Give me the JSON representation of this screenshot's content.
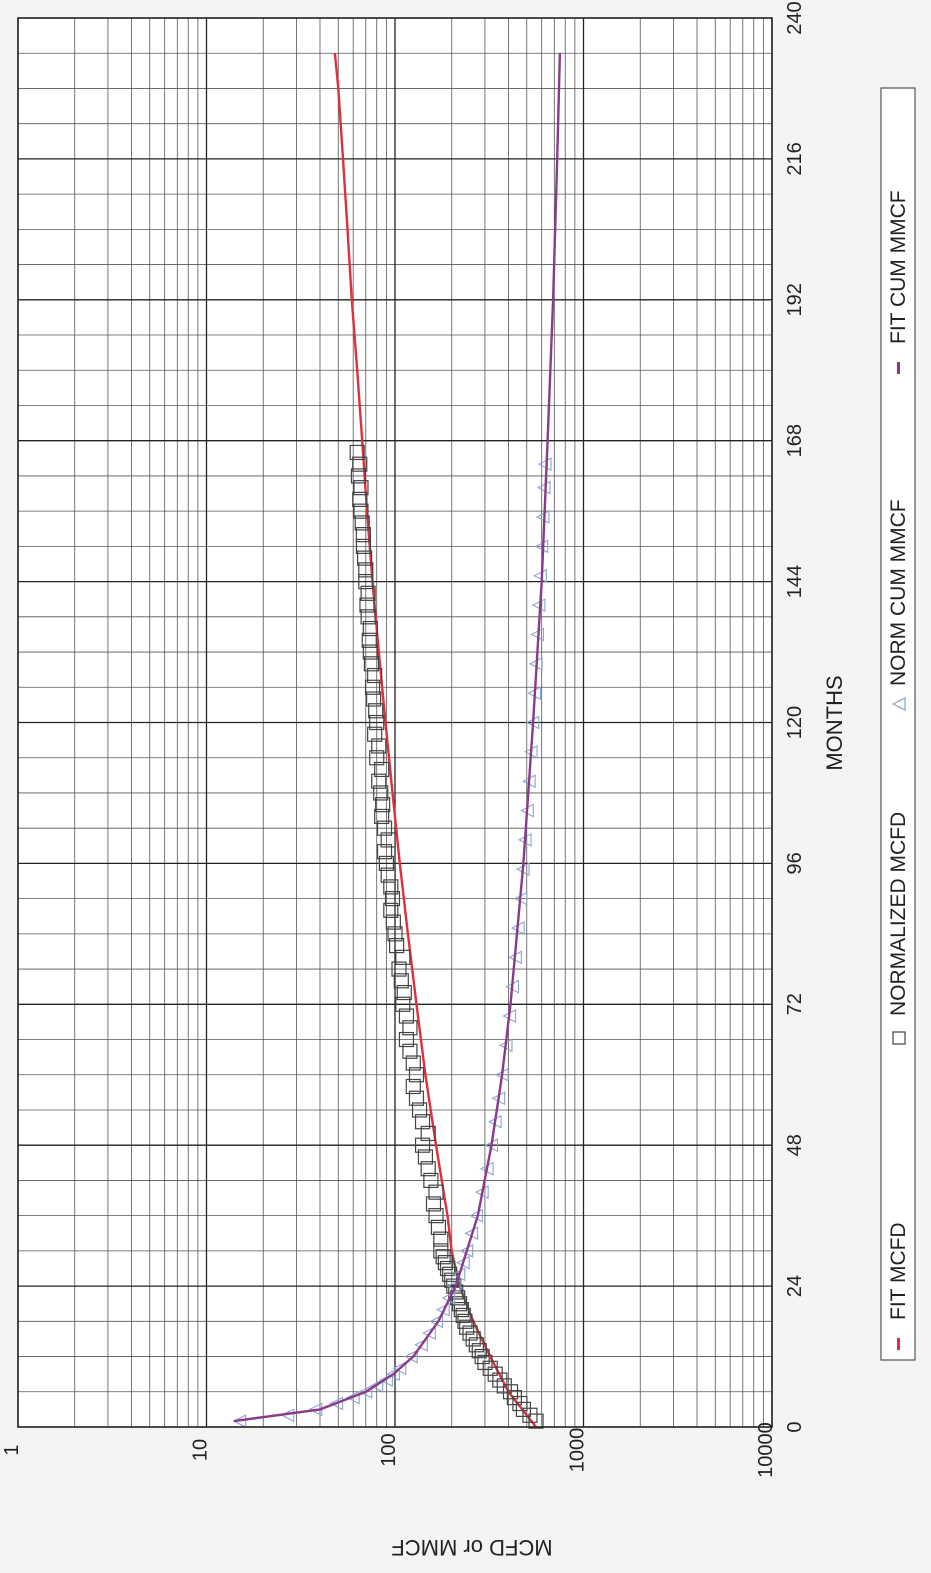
{
  "chart_data": {
    "type": "scatter",
    "title": "",
    "xlabel": "MONTHS",
    "ylabel": "MCFD or MMCF",
    "xlim": [
      0,
      240
    ],
    "ylim": [
      1,
      10000
    ],
    "y_scale": "log",
    "x_ticks": [
      "0",
      "24",
      "48",
      "72",
      "96",
      "120",
      "144",
      "168",
      "192",
      "216",
      "240"
    ],
    "y_ticks": [
      "1",
      "10",
      "100",
      "1000",
      "10000"
    ],
    "grid": true,
    "orientation": "rotated 90 degrees clockwise (x axis runs bottom-to-top, y axis runs left-to-right)",
    "legend_position": "right",
    "series": [
      {
        "name": "FIT MCFD",
        "kind": "line",
        "color": "#e0303c",
        "x": [
          0,
          6,
          12,
          18,
          24,
          30,
          36,
          48,
          60,
          72,
          84,
          96,
          108,
          120,
          132,
          144,
          156,
          168,
          180,
          192,
          204,
          216,
          228,
          234
        ],
        "y": [
          560,
          400,
          320,
          260,
          220,
          200,
          190,
          165,
          145,
          130,
          117,
          106,
          97,
          89,
          82,
          76,
          71,
          67,
          63,
          59,
          56,
          53,
          50,
          48
        ]
      },
      {
        "name": "NORMALIZED MCFD",
        "kind": "scatter",
        "marker": "square",
        "color": "#444444",
        "x": [
          1,
          2,
          3,
          4,
          5,
          6,
          7,
          8,
          9,
          10,
          11,
          12,
          13,
          14,
          15,
          16,
          17,
          18,
          19,
          20,
          21,
          22,
          23,
          24,
          25,
          26,
          27,
          28,
          29,
          30,
          32,
          34,
          36,
          38,
          40,
          42,
          44,
          46,
          48,
          50,
          52,
          54,
          56,
          58,
          60,
          62,
          64,
          66,
          68,
          70,
          72,
          74,
          76,
          78,
          80,
          82,
          84,
          86,
          88,
          90,
          92,
          94,
          96,
          98,
          100,
          102,
          104,
          106,
          108,
          110,
          112,
          114,
          116,
          118,
          120,
          122,
          124,
          126,
          128,
          130,
          132,
          134,
          136,
          138,
          140,
          142,
          144,
          146,
          148,
          150,
          152,
          154,
          156,
          158,
          160,
          162,
          164,
          166
        ],
        "y": [
          560,
          520,
          480,
          460,
          430,
          410,
          380,
          360,
          340,
          320,
          300,
          290,
          280,
          270,
          260,
          250,
          240,
          235,
          230,
          225,
          220,
          215,
          210,
          205,
          200,
          195,
          190,
          185,
          180,
          175,
          175,
          170,
          165,
          160,
          165,
          155,
          150,
          145,
          140,
          150,
          140,
          135,
          130,
          125,
          130,
          125,
          120,
          115,
          120,
          115,
          110,
          112,
          108,
          105,
          110,
          102,
          100,
          98,
          95,
          97,
          95,
          92,
          90,
          88,
          92,
          88,
          85,
          86,
          84,
          82,
          85,
          80,
          82,
          78,
          80,
          79,
          77,
          76,
          78,
          75,
          74,
          73,
          74,
          72,
          71,
          72,
          70,
          70,
          69,
          68,
          68,
          67,
          66,
          65,
          66,
          64,
          65,
          63
        ]
      },
      {
        "name": "NORM CUM MMCF",
        "kind": "scatter",
        "marker": "triangle",
        "color": "#8aa4cc",
        "x": [
          1,
          2,
          3,
          4,
          5,
          6,
          7,
          8,
          9,
          10,
          12,
          14,
          16,
          18,
          20,
          22,
          24,
          26,
          28,
          30,
          33,
          36,
          40,
          44,
          48,
          52,
          56,
          60,
          65,
          70,
          75,
          80,
          85,
          90,
          95,
          100,
          105,
          110,
          115,
          120,
          125,
          130,
          135,
          140,
          145,
          150,
          155,
          160,
          164
        ],
        "y": [
          15,
          27,
          38,
          49,
          60,
          70,
          80,
          90,
          98,
          106,
          122,
          138,
          152,
          166,
          180,
          193,
          206,
          218,
          230,
          240,
          255,
          270,
          290,
          308,
          325,
          340,
          355,
          370,
          388,
          405,
          420,
          435,
          450,
          465,
          478,
          490,
          503,
          515,
          527,
          538,
          549,
          560,
          570,
          580,
          590,
          600,
          609,
          618,
          625
        ]
      },
      {
        "name": "FIT CUM MMCF",
        "kind": "line",
        "color": "#8a3a8c",
        "x": [
          1,
          3,
          6,
          9,
          12,
          18,
          24,
          36,
          48,
          60,
          72,
          96,
          120,
          144,
          168,
          192,
          216,
          234
        ],
        "y": [
          14,
          40,
          70,
          98,
          125,
          170,
          210,
          275,
          325,
          370,
          410,
          480,
          540,
          600,
          645,
          690,
          725,
          750
        ]
      }
    ]
  }
}
